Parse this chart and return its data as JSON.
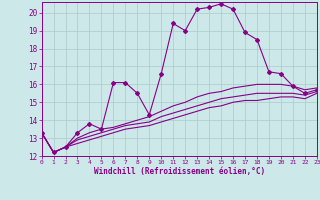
{
  "xlabel": "Windchill (Refroidissement éolien,°C)",
  "x_values": [
    0,
    1,
    2,
    3,
    4,
    5,
    6,
    7,
    8,
    9,
    10,
    11,
    12,
    13,
    14,
    15,
    16,
    17,
    18,
    19,
    20,
    21,
    22,
    23
  ],
  "line1": [
    13.3,
    12.2,
    12.5,
    13.3,
    13.8,
    13.5,
    16.1,
    16.1,
    15.5,
    14.3,
    16.6,
    19.4,
    19.0,
    20.2,
    20.3,
    20.5,
    20.2,
    18.9,
    18.5,
    16.7,
    16.6,
    15.9,
    15.5,
    15.7
  ],
  "line2": [
    13.3,
    12.2,
    12.5,
    13.0,
    13.3,
    13.5,
    13.6,
    13.8,
    14.0,
    14.2,
    14.5,
    14.8,
    15.0,
    15.3,
    15.5,
    15.6,
    15.8,
    15.9,
    16.0,
    16.0,
    16.0,
    15.9,
    15.7,
    15.8
  ],
  "line3": [
    13.3,
    12.2,
    12.5,
    12.9,
    13.1,
    13.3,
    13.5,
    13.7,
    13.8,
    13.9,
    14.2,
    14.4,
    14.6,
    14.8,
    15.0,
    15.2,
    15.3,
    15.4,
    15.5,
    15.5,
    15.5,
    15.5,
    15.4,
    15.6
  ],
  "line4": [
    13.3,
    12.2,
    12.5,
    12.7,
    12.9,
    13.1,
    13.3,
    13.5,
    13.6,
    13.7,
    13.9,
    14.1,
    14.3,
    14.5,
    14.7,
    14.8,
    15.0,
    15.1,
    15.1,
    15.2,
    15.3,
    15.3,
    15.2,
    15.5
  ],
  "line_color": "#880088",
  "marker": "D",
  "marker_size": 2.0,
  "bg_color": "#cce8e8",
  "grid_color": "#aacccc",
  "ylim": [
    12,
    20.6
  ],
  "yticks": [
    12,
    13,
    14,
    15,
    16,
    17,
    18,
    19,
    20
  ],
  "xlim": [
    0,
    23
  ],
  "xticks": [
    0,
    1,
    2,
    3,
    4,
    5,
    6,
    7,
    8,
    9,
    10,
    11,
    12,
    13,
    14,
    15,
    16,
    17,
    18,
    19,
    20,
    21,
    22,
    23
  ]
}
